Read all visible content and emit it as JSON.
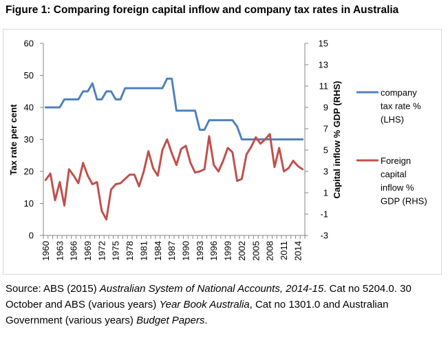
{
  "figure": {
    "title": "Figure 1: Comparing foreign capital inflow and company tax rates in Australia"
  },
  "chart_data": {
    "type": "line",
    "years": [
      1960,
      1961,
      1962,
      1963,
      1964,
      1965,
      1966,
      1967,
      1968,
      1969,
      1970,
      1971,
      1972,
      1973,
      1974,
      1975,
      1976,
      1977,
      1978,
      1979,
      1980,
      1981,
      1982,
      1983,
      1984,
      1985,
      1986,
      1987,
      1988,
      1989,
      1990,
      1991,
      1992,
      1993,
      1994,
      1995,
      1996,
      1997,
      1998,
      1999,
      2000,
      2001,
      2002,
      2003,
      2004,
      2005,
      2006,
      2007,
      2008,
      2009,
      2010,
      2011,
      2012,
      2013,
      2014,
      2015
    ],
    "x_tick_labels": [
      "1960",
      "1963",
      "1966",
      "1969",
      "1972",
      "1975",
      "1978",
      "1981",
      "1984",
      "1987",
      "1990",
      "1993",
      "1996",
      "1999",
      "2002",
      "2005",
      "2008",
      "2011",
      "2014"
    ],
    "y_left": {
      "label": "Tax rate per cent",
      "min": 0,
      "max": 60,
      "ticks": [
        "0",
        "10",
        "20",
        "30",
        "40",
        "50",
        "60"
      ]
    },
    "y_right": {
      "label": "Capital inflow % GDP (RHS)",
      "min": -3,
      "max": 15,
      "ticks": [
        "-3",
        "-1",
        "1",
        "3",
        "5",
        "7",
        "9",
        "11",
        "13",
        "15"
      ]
    },
    "series": [
      {
        "name": "company tax rate % (LHS)",
        "legend_lines": [
          "company",
          "tax rate %",
          "(LHS)"
        ],
        "axis": "left",
        "color": "#4f81bd",
        "values": [
          40,
          40,
          40,
          40,
          42.5,
          42.5,
          42.5,
          42.5,
          45,
          45,
          47.5,
          42.5,
          42.5,
          45,
          45,
          42.5,
          42.5,
          46,
          46,
          46,
          46,
          46,
          46,
          46,
          46,
          46,
          49,
          49,
          39,
          39,
          39,
          39,
          39,
          33,
          33,
          36,
          36,
          36,
          36,
          36,
          36,
          34,
          30,
          30,
          30,
          30,
          30,
          30,
          30,
          30,
          30,
          30,
          30,
          30,
          30,
          30
        ]
      },
      {
        "name": "Foreign capital inflow % GDP (RHS)",
        "legend_lines": [
          "Foreign",
          "capital",
          "inflow %",
          "GDP (RHS)"
        ],
        "axis": "right",
        "color": "#c0504d",
        "values": [
          2.2,
          2.8,
          0.3,
          2,
          -0.2,
          3.2,
          2.6,
          1.9,
          3.8,
          2.6,
          1.8,
          2,
          -0.7,
          -1.5,
          1.3,
          1.8,
          1.9,
          2.3,
          2.7,
          2.7,
          1.6,
          3,
          4.9,
          3.3,
          2.6,
          5,
          6,
          4.7,
          3.6,
          5.1,
          5.4,
          3.8,
          2.9,
          3,
          3.2,
          6.3,
          3.6,
          3,
          4,
          5.2,
          4.8,
          2.1,
          2.3,
          4.6,
          5.3,
          6.2,
          5.6,
          6,
          6.5,
          3.4,
          5.2,
          3,
          3.3,
          4,
          3.5,
          3.2
        ]
      }
    ]
  },
  "source": {
    "prefix": "Source: ABS (2015) ",
    "title1": "Australian System of National Accounts, 2014-15",
    "mid1": ". Cat no 5204.0. 30 October and ABS (various years) ",
    "title2": "Year Book Australia",
    "mid2": ", Cat no 1301.0 and Australian Government (various years) ",
    "title3": "Budget Papers",
    "suffix": "."
  }
}
